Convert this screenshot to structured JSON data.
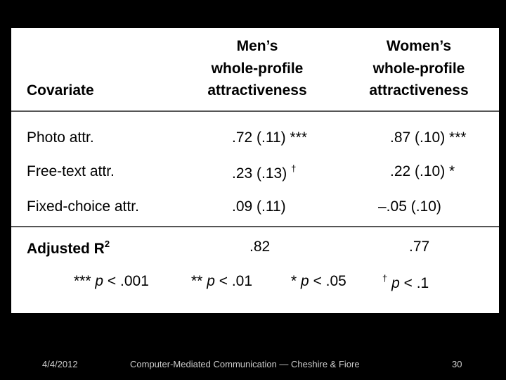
{
  "table": {
    "headers": [
      [
        "Covariate"
      ],
      [
        "Men’s",
        "whole-profile",
        "attractiveness"
      ],
      [
        "Women’s",
        "whole-profile",
        "attractiveness"
      ]
    ],
    "rows": [
      {
        "label": "Photo attr.",
        "men": {
          "value": ".72 (.11) ***"
        },
        "women": {
          "value": ".87 (.10) ***"
        }
      },
      {
        "label": "Free-text attr.",
        "men": {
          "value": ".23 (.13)",
          "sig": "†"
        },
        "women": {
          "value": ".22 (.10) *"
        }
      },
      {
        "label": "Fixed-choice attr.",
        "men": {
          "value": ".09 (.11)"
        },
        "women": {
          "value": "–.05 (.10)"
        }
      }
    ],
    "summary": {
      "label": "Adjusted R",
      "sup": "2",
      "men": ".82",
      "women": ".77"
    },
    "legend": [
      {
        "symbol": "***",
        "p": "p",
        "threshold": "< .001"
      },
      {
        "symbol": "**",
        "p": "p",
        "threshold": "< .01"
      },
      {
        "symbol": "*",
        "p": "p",
        "threshold": "< .05"
      },
      {
        "symbol": "†",
        "p": "p",
        "threshold": "< .1"
      }
    ]
  },
  "footer": {
    "date": "4/4/2012",
    "title": "Computer-Mediated Communication — Cheshire & Fiore",
    "page": "30"
  }
}
